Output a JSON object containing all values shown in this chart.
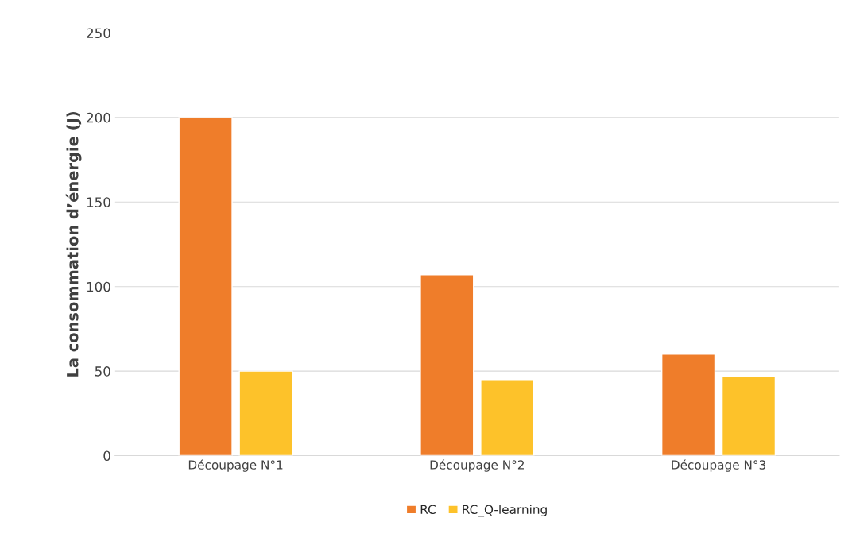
{
  "chart_data": {
    "type": "bar",
    "ylabel": "La consommation d’énergie (J)",
    "categories": [
      "Découpage N°1",
      "Découpage N°2",
      "Découpage N°3"
    ],
    "series": [
      {
        "name": "RC",
        "color": "#ef7d2a",
        "values": [
          200,
          107,
          60
        ]
      },
      {
        "name": "RC_Q-learning",
        "color": "#fdc22a",
        "values": [
          50,
          45,
          47
        ]
      }
    ],
    "ylim": [
      0,
      250
    ],
    "yticks": [
      0,
      50,
      100,
      150,
      200,
      250
    ],
    "grid": "y",
    "legend": "bottom"
  }
}
